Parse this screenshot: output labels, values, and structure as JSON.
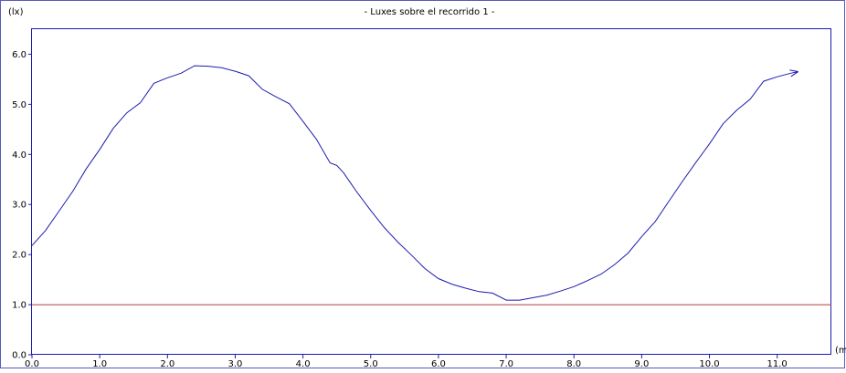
{
  "chart_data": {
    "type": "line",
    "title": "- Luxes sobre el recorrido 1 -",
    "ylabel": "(lx)",
    "xlabel": "(m",
    "xlim": [
      0,
      11.8
    ],
    "ylim": [
      0,
      6.5
    ],
    "xticks": [
      {
        "value": 0,
        "label": "0.0"
      },
      {
        "value": 1,
        "label": "1.0"
      },
      {
        "value": 2,
        "label": "2.0"
      },
      {
        "value": 3,
        "label": "3.0"
      },
      {
        "value": 4,
        "label": "4.0"
      },
      {
        "value": 5,
        "label": "5.0"
      },
      {
        "value": 6,
        "label": "6.0"
      },
      {
        "value": 7,
        "label": "7.0"
      },
      {
        "value": 8,
        "label": "8.0"
      },
      {
        "value": 9,
        "label": "9.0"
      },
      {
        "value": 10,
        "label": "10.0"
      },
      {
        "value": 11,
        "label": "11.0"
      }
    ],
    "yticks": [
      {
        "value": 0,
        "label": "0.0"
      },
      {
        "value": 1,
        "label": "1.0"
      },
      {
        "value": 2,
        "label": "2.0"
      },
      {
        "value": 3,
        "label": "3.0"
      },
      {
        "value": 4,
        "label": "4.0"
      },
      {
        "value": 5,
        "label": "5.0"
      },
      {
        "value": 6,
        "label": "6.0"
      }
    ],
    "grid": false,
    "series": [
      {
        "color": "#1c1cae",
        "end_arrow": true,
        "x": [
          0.0,
          0.2,
          0.4,
          0.6,
          0.8,
          1.0,
          1.2,
          1.4,
          1.6,
          1.8,
          2.0,
          2.2,
          2.4,
          2.6,
          2.8,
          3.0,
          3.2,
          3.4,
          3.6,
          3.8,
          4.0,
          4.2,
          4.4,
          4.5,
          4.6,
          4.8,
          5.0,
          5.2,
          5.4,
          5.6,
          5.8,
          6.0,
          6.2,
          6.4,
          6.6,
          6.8,
          7.0,
          7.2,
          7.4,
          7.6,
          7.8,
          8.0,
          8.2,
          8.4,
          8.6,
          8.8,
          9.0,
          9.2,
          9.4,
          9.6,
          9.8,
          10.0,
          10.2,
          10.4,
          10.6,
          10.8,
          11.0,
          11.2,
          11.3
        ],
        "y": [
          2.18,
          2.48,
          2.87,
          3.26,
          3.71,
          4.1,
          4.52,
          4.83,
          5.03,
          5.42,
          5.53,
          5.62,
          5.77,
          5.76,
          5.73,
          5.66,
          5.57,
          5.3,
          5.15,
          5.01,
          4.66,
          4.3,
          3.83,
          3.78,
          3.63,
          3.24,
          2.88,
          2.54,
          2.25,
          1.99,
          1.72,
          1.52,
          1.41,
          1.33,
          1.26,
          1.23,
          1.09,
          1.09,
          1.14,
          1.19,
          1.27,
          1.36,
          1.48,
          1.61,
          1.8,
          2.03,
          2.36,
          2.66,
          3.06,
          3.46,
          3.84,
          4.21,
          4.61,
          4.88,
          5.1,
          5.46,
          5.55,
          5.62,
          5.65
        ]
      },
      {
        "color": "#b23c3c",
        "end_arrow": false,
        "x": [
          0.0,
          11.8
        ],
        "y": [
          1.0,
          1.0
        ]
      }
    ]
  }
}
